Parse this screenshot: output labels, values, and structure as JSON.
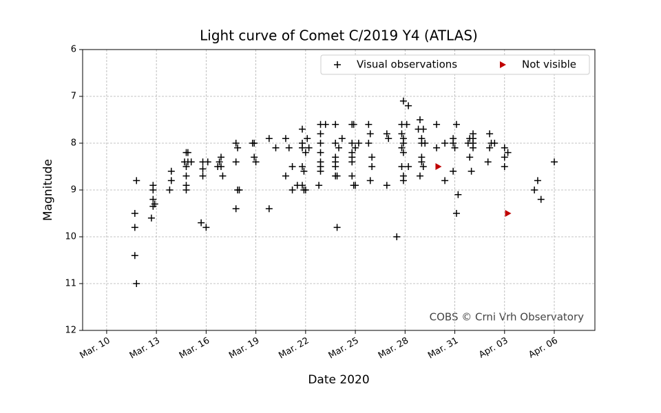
{
  "chart_data": {
    "type": "scatter",
    "title": "Light curve of Comet C/2019 Y4 (ATLAS)",
    "xlabel": "Date 2020",
    "ylabel": "Magnitude",
    "annotation": "COBS © Crni Vrh Observatory",
    "xlim": [
      8.55,
      39.45
    ],
    "xticks": [
      {
        "value": 10,
        "label": "Mar. 10"
      },
      {
        "value": 13,
        "label": "Mar. 13"
      },
      {
        "value": 16,
        "label": "Mar. 16"
      },
      {
        "value": 19,
        "label": "Mar. 19"
      },
      {
        "value": 22,
        "label": "Mar. 22"
      },
      {
        "value": 25,
        "label": "Mar. 25"
      },
      {
        "value": 28,
        "label": "Mar. 28"
      },
      {
        "value": 31,
        "label": "Mar. 31"
      },
      {
        "value": 34,
        "label": "Apr. 03"
      },
      {
        "value": 37,
        "label": "Apr. 06"
      }
    ],
    "ylim": [
      12,
      6
    ],
    "yticks": [
      6,
      7,
      8,
      9,
      10,
      11,
      12
    ],
    "grid": true,
    "legend": "upper right",
    "series": [
      {
        "name": "Visual observations",
        "color": "#000000",
        "marker": "plus",
        "x": [
          11.8,
          11.7,
          11.7,
          11.7,
          11.8,
          12.8,
          12.8,
          12.8,
          12.8,
          12.7,
          12.9,
          13.9,
          13.9,
          13.8,
          14.8,
          14.9,
          14.8,
          14.8,
          14.8,
          14.8,
          14.7,
          15.1,
          14.9,
          15.8,
          15.8,
          15.8,
          15.7,
          16.0,
          16.1,
          16.8,
          16.9,
          16.9,
          17.0,
          16.7,
          17.8,
          17.9,
          17.8,
          17.9,
          18.0,
          17.8,
          18.8,
          18.9,
          18.9,
          19.0,
          19.8,
          19.8,
          20.2,
          20.8,
          20.8,
          21.0,
          21.2,
          21.2,
          21.5,
          21.8,
          21.8,
          21.8,
          21.8,
          21.9,
          21.9,
          21.8,
          22.0,
          22.0,
          22.1,
          22.2,
          22.9,
          22.9,
          22.9,
          22.9,
          22.9,
          22.9,
          22.9,
          22.8,
          23.2,
          23.8,
          23.8,
          23.8,
          23.8,
          23.8,
          23.8,
          23.9,
          23.9,
          24.0,
          24.2,
          24.8,
          24.9,
          24.8,
          24.8,
          24.8,
          24.8,
          24.8,
          24.9,
          25.0,
          25.0,
          25.2,
          25.8,
          25.8,
          25.9,
          26.0,
          26.0,
          25.9,
          26.9,
          26.9,
          27.0,
          27.5,
          27.9,
          28.2,
          27.8,
          28.1,
          27.8,
          27.9,
          27.9,
          27.8,
          27.9,
          27.8,
          28.2,
          27.9,
          27.9,
          28.9,
          28.8,
          29.1,
          29.0,
          29.0,
          29.0,
          29.0,
          29.1,
          28.9,
          29.2,
          29.9,
          29.9,
          30.4,
          30.4,
          30.9,
          30.9,
          31.0,
          30.9,
          31.1,
          31.2,
          31.1,
          31.8,
          31.9,
          32.0,
          32.1,
          32.1,
          32.1,
          32.1,
          31.9,
          33.0,
          33.1,
          33.2,
          33.1,
          33.4,
          34.0,
          34.0,
          34.0,
          34.2,
          35.8,
          36.0,
          36.2,
          37.0
        ],
        "values": [
          8.8,
          9.5,
          9.8,
          10.4,
          11.0,
          8.9,
          9.0,
          9.2,
          9.35,
          9.6,
          9.3,
          8.6,
          8.8,
          9.0,
          8.2,
          8.4,
          8.5,
          8.7,
          8.9,
          9.0,
          8.4,
          8.4,
          8.2,
          8.4,
          8.55,
          8.7,
          9.7,
          9.8,
          8.4,
          8.4,
          8.3,
          8.5,
          8.7,
          8.5,
          8.0,
          8.1,
          8.4,
          9.0,
          9.0,
          9.4,
          8.0,
          8.0,
          8.3,
          8.4,
          7.9,
          9.4,
          8.1,
          7.9,
          8.7,
          8.1,
          8.5,
          9.0,
          8.9,
          7.7,
          8.0,
          8.1,
          8.5,
          8.6,
          9.0,
          8.9,
          9.0,
          8.2,
          7.9,
          8.1,
          7.6,
          7.8,
          8.0,
          8.2,
          8.4,
          8.5,
          8.6,
          8.9,
          7.6,
          7.6,
          8.0,
          8.3,
          8.4,
          8.5,
          8.7,
          8.7,
          9.8,
          8.1,
          7.9,
          7.6,
          7.6,
          8.0,
          8.2,
          8.3,
          8.4,
          8.7,
          8.9,
          8.9,
          8.1,
          8.0,
          7.6,
          8.0,
          7.8,
          8.3,
          8.5,
          8.8,
          8.9,
          7.8,
          7.9,
          10.0,
          7.1,
          7.2,
          7.6,
          7.6,
          7.8,
          7.9,
          8.0,
          8.1,
          8.2,
          8.5,
          8.5,
          8.7,
          8.8,
          7.5,
          7.7,
          7.7,
          7.9,
          8.0,
          8.3,
          8.4,
          8.5,
          8.7,
          8.0,
          7.6,
          8.1,
          8.0,
          8.8,
          7.9,
          8.0,
          8.1,
          8.6,
          7.6,
          9.1,
          9.5,
          8.0,
          8.3,
          8.6,
          7.8,
          7.9,
          8.0,
          8.1,
          7.9,
          8.4,
          7.8,
          8.0,
          8.1,
          8.0,
          8.1,
          8.3,
          8.5,
          8.2,
          9.0,
          8.8,
          9.2,
          8.4
        ]
      },
      {
        "name": "Not visible",
        "color": "#c00000",
        "marker": "triangle-right",
        "x": [
          30.0,
          34.2
        ],
        "values": [
          8.5,
          9.5
        ]
      }
    ]
  }
}
